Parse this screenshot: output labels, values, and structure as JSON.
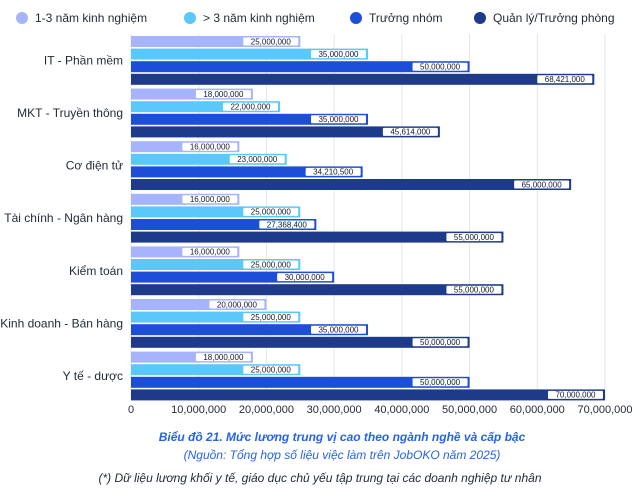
{
  "chart_data": {
    "type": "bar",
    "orientation": "horizontal",
    "categories": [
      "IT - Phần mềm",
      "MKT - Truyền thông",
      "Cơ điện tử",
      "Tài chính - Ngân hàng",
      "Kiểm toán",
      "Kinh doanh - Bán hàng",
      "Y tế - dược"
    ],
    "series": [
      {
        "name": "1-3 năm kinh nghiệm",
        "color": "#a5b4fc",
        "values": [
          25000000,
          18000000,
          16000000,
          16000000,
          16000000,
          20000000,
          18000000
        ],
        "labels": [
          "25,000,000",
          "18,000,000",
          "16,000,000",
          "16,000,000",
          "16,000,000",
          "20,000,000",
          "18,000,000"
        ]
      },
      {
        "name": "> 3 năm kinh nghiệm",
        "color": "#5ac8fa",
        "values": [
          35000000,
          22000000,
          23000000,
          25000000,
          25000000,
          25000000,
          25000000
        ],
        "labels": [
          "35,000,000",
          "22,000,000",
          "23,000,000",
          "25,000,000",
          "25,000,000",
          "25,000,000",
          "25,000,000"
        ]
      },
      {
        "name": "Trưởng nhóm",
        "color": "#1d4ed8",
        "values": [
          50000000,
          35000000,
          34210500,
          27368400,
          30000000,
          35000000,
          50000000
        ],
        "labels": [
          "50,000,000",
          "35,000,000",
          "34,210,500",
          "27,368,400",
          "30,000,000",
          "35,000,000",
          "50,000,000"
        ]
      },
      {
        "name": "Quản lý/Trưởng phòng",
        "color": "#1e3a8a",
        "values": [
          68421000,
          45614000,
          65000000,
          55000000,
          55000000,
          50000000,
          70000000
        ],
        "labels": [
          "68,421,000",
          "45,614,000",
          "65,000,000",
          "55,000,000",
          "55,000,000",
          "50,000,000",
          "70,000,000"
        ]
      }
    ],
    "xlim": [
      0,
      70000000
    ],
    "ticks": [
      0,
      10000000,
      20000000,
      30000000,
      40000000,
      50000000,
      60000000,
      70000000
    ],
    "tick_labels": [
      "0",
      "10,000,000",
      "20,000,000",
      "30,000,000",
      "40,000,000",
      "50,000,000",
      "60,000,000",
      "70,000,000"
    ],
    "title": "Biểu đồ 21. Mức lương trung vị cao theo ngành nghề và cấp bậc",
    "source": "(Nguồn: Tổng hợp số liệu việc làm trên JobOKO năm 2025)",
    "footnote": "(*) Dữ liệu lương khối y tế, giáo dục chủ yếu tập trung tại các doanh nghiệp tư nhân",
    "legend_position": "top",
    "grid": true
  }
}
